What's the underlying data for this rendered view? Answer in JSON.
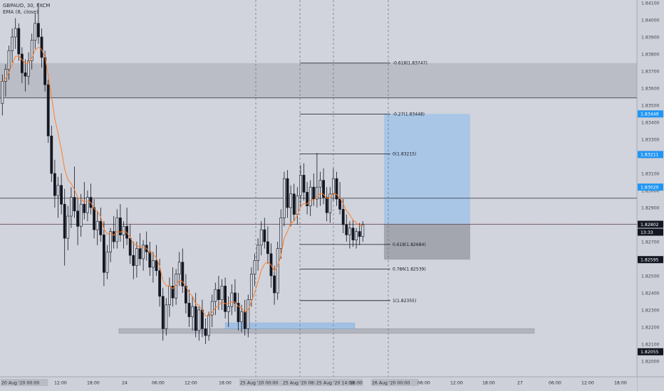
{
  "window": {
    "symbol_line": "GBPAUD, 30, FXCM",
    "indicator_line": "EMA (8, close)"
  },
  "colors": {
    "background": "#d1d4dc",
    "axis_background": "#ced1d9",
    "candle": "#131722",
    "ema": "#ff7f2a",
    "zone_fill": "#b2b5be",
    "target_fill": "#a9c6e6",
    "stop_fill": "#9b9ea6",
    "label_blue": "#2196f3",
    "label_dark": "#131722"
  },
  "chart_data": {
    "type": "candlestick",
    "symbol": "GBPAUD",
    "timeframe": "30",
    "source": "FXCM",
    "ylim": [
      1.82,
      1.841
    ],
    "y_ticks": [
      "1.84100",
      "1.84000",
      "1.83900",
      "1.83800",
      "1.83700",
      "1.83600",
      "1.83500",
      "1.83400",
      "1.83300",
      "1.83200",
      "1.83100",
      "1.83000",
      "1.82900",
      "1.82800",
      "1.82700",
      "1.82600",
      "1.82500",
      "1.82400",
      "1.82300",
      "1.82200",
      "1.82100",
      "1.82000"
    ],
    "x_ticks": [
      "20 Aug '20  00:00",
      "12:00",
      "18:00",
      "24",
      "06:00",
      "12:00",
      "18:00",
      "25 Aug '20  00:00",
      "25 Aug '20  08:00",
      "25 Aug '20  14:00",
      "18:00",
      "26 Aug '20  00:00",
      "06:00",
      "12:00",
      "18:00",
      "27",
      "06:00",
      "12:00",
      "18:00"
    ],
    "price_labels": [
      {
        "value": "1.83449",
        "price": 1.83449,
        "style": "blue"
      },
      {
        "value": "1.83211",
        "price": 1.83211,
        "style": "blue"
      },
      {
        "value": "1.83020",
        "price": 1.8302,
        "style": "blue"
      },
      {
        "value": "1.82802",
        "price": 1.82802,
        "style": "dark"
      },
      {
        "value": "13:33",
        "price": 1.82756,
        "style": "dark"
      },
      {
        "value": "1.82595",
        "price": 1.82595,
        "style": "dark"
      },
      {
        "value": "1.82055",
        "price": 1.82055,
        "style": "dark"
      }
    ],
    "fib_levels": [
      {
        "label": "-0.618(1.83747)",
        "price": 1.83747
      },
      {
        "label": "-0.27(1.83448)",
        "price": 1.83448
      },
      {
        "label": "0(1.83215)",
        "price": 1.83215
      },
      {
        "label": "0.618(1.82684)",
        "price": 1.82684
      },
      {
        "label": "0.786(1.82539)",
        "price": 1.82539
      },
      {
        "label": "1(1.82355)",
        "price": 1.82355
      }
    ],
    "horizontal_lines": [
      1.83543,
      1.82955,
      1.82802
    ],
    "zones": [
      {
        "name": "resistance-zone",
        "from": 1.83543,
        "to": 1.83747
      },
      {
        "name": "support-zone",
        "from": 1.82163,
        "to": 1.8219
      },
      {
        "name": "demand-zone",
        "from": 1.8219,
        "to": 1.82225
      }
    ],
    "position": {
      "entry": 1.82802,
      "target": 1.83449,
      "stop": 1.82595
    },
    "ohlc": [
      [
        1.8351,
        1.8368,
        1.8344,
        1.8364
      ],
      [
        1.8364,
        1.8374,
        1.8355,
        1.8371
      ],
      [
        1.8371,
        1.8385,
        1.8365,
        1.8382
      ],
      [
        1.8382,
        1.8395,
        1.8375,
        1.839
      ],
      [
        1.839,
        1.8401,
        1.8383,
        1.8395
      ],
      [
        1.8395,
        1.8398,
        1.8376,
        1.838
      ],
      [
        1.838,
        1.8384,
        1.8363,
        1.8369
      ],
      [
        1.8369,
        1.8377,
        1.8358,
        1.8367
      ],
      [
        1.8367,
        1.8381,
        1.8362,
        1.8376
      ],
      [
        1.8376,
        1.8392,
        1.8371,
        1.8388
      ],
      [
        1.8388,
        1.8404,
        1.8383,
        1.8398
      ],
      [
        1.8398,
        1.841,
        1.8386,
        1.839
      ],
      [
        1.839,
        1.8395,
        1.8372,
        1.8378
      ],
      [
        1.8378,
        1.8382,
        1.8358,
        1.8362
      ],
      [
        1.8362,
        1.8365,
        1.8328,
        1.8332
      ],
      [
        1.8332,
        1.8338,
        1.8305,
        1.831
      ],
      [
        1.831,
        1.8318,
        1.829,
        1.8297
      ],
      [
        1.8297,
        1.8308,
        1.8284,
        1.8303
      ],
      [
        1.8303,
        1.831,
        1.8286,
        1.8292
      ],
      [
        1.8292,
        1.8301,
        1.8256,
        1.8272
      ],
      [
        1.8272,
        1.8291,
        1.8265,
        1.8285
      ],
      [
        1.8285,
        1.8302,
        1.8278,
        1.8296
      ],
      [
        1.8296,
        1.8314,
        1.8284,
        1.8288
      ],
      [
        1.8288,
        1.8296,
        1.8268,
        1.8279
      ],
      [
        1.8279,
        1.8298,
        1.8273,
        1.8292
      ],
      [
        1.8292,
        1.8305,
        1.8283,
        1.8287
      ],
      [
        1.8287,
        1.83,
        1.8282,
        1.8296
      ],
      [
        1.8296,
        1.8304,
        1.8286,
        1.829
      ],
      [
        1.829,
        1.8295,
        1.8272,
        1.8277
      ],
      [
        1.8277,
        1.8288,
        1.8268,
        1.8282
      ],
      [
        1.8282,
        1.829,
        1.827,
        1.8274
      ],
      [
        1.8274,
        1.8282,
        1.8244,
        1.8252
      ],
      [
        1.8252,
        1.8268,
        1.8248,
        1.8264
      ],
      [
        1.8264,
        1.8278,
        1.8258,
        1.8276
      ],
      [
        1.8276,
        1.8285,
        1.8266,
        1.827
      ],
      [
        1.827,
        1.8289,
        1.8266,
        1.8284
      ],
      [
        1.8284,
        1.8292,
        1.827,
        1.8274
      ],
      [
        1.8274,
        1.8282,
        1.8266,
        1.8279
      ],
      [
        1.8279,
        1.829,
        1.8268,
        1.8272
      ],
      [
        1.8272,
        1.828,
        1.8257,
        1.8262
      ],
      [
        1.8262,
        1.827,
        1.8248,
        1.8256
      ],
      [
        1.8256,
        1.827,
        1.8249,
        1.8266
      ],
      [
        1.8266,
        1.8275,
        1.8256,
        1.826
      ],
      [
        1.826,
        1.8271,
        1.8253,
        1.8268
      ],
      [
        1.8268,
        1.8276,
        1.8259,
        1.8264
      ],
      [
        1.8264,
        1.827,
        1.825,
        1.8255
      ],
      [
        1.8255,
        1.8264,
        1.8246,
        1.8259
      ],
      [
        1.8259,
        1.8268,
        1.825,
        1.8253
      ],
      [
        1.8253,
        1.826,
        1.8232,
        1.8238
      ],
      [
        1.8238,
        1.8243,
        1.8212,
        1.8219
      ],
      [
        1.8219,
        1.8237,
        1.8215,
        1.8233
      ],
      [
        1.8233,
        1.8249,
        1.8226,
        1.8244
      ],
      [
        1.8244,
        1.8255,
        1.8232,
        1.8237
      ],
      [
        1.8237,
        1.8254,
        1.8233,
        1.8251
      ],
      [
        1.8251,
        1.8264,
        1.8244,
        1.8258
      ],
      [
        1.8258,
        1.8266,
        1.824,
        1.8244
      ],
      [
        1.8244,
        1.8251,
        1.8228,
        1.8234
      ],
      [
        1.8234,
        1.8242,
        1.822,
        1.8226
      ],
      [
        1.8226,
        1.8238,
        1.8218,
        1.8232
      ],
      [
        1.8232,
        1.824,
        1.8214,
        1.8218
      ],
      [
        1.8218,
        1.8232,
        1.8212,
        1.823
      ],
      [
        1.823,
        1.8236,
        1.8214,
        1.8219
      ],
      [
        1.8219,
        1.8225,
        1.821,
        1.8215
      ],
      [
        1.8215,
        1.8229,
        1.8212,
        1.8227
      ],
      [
        1.8227,
        1.8239,
        1.822,
        1.8235
      ],
      [
        1.8235,
        1.8246,
        1.8227,
        1.8242
      ],
      [
        1.8242,
        1.825,
        1.823,
        1.8236
      ],
      [
        1.8236,
        1.8248,
        1.823,
        1.8244
      ],
      [
        1.8244,
        1.8249,
        1.8225,
        1.8229
      ],
      [
        1.8229,
        1.8238,
        1.822,
        1.8232
      ],
      [
        1.8232,
        1.8245,
        1.8227,
        1.824
      ],
      [
        1.824,
        1.8248,
        1.8229,
        1.8234
      ],
      [
        1.8234,
        1.824,
        1.8218,
        1.8223
      ],
      [
        1.8223,
        1.8233,
        1.8217,
        1.8229
      ],
      [
        1.8229,
        1.8236,
        1.8215,
        1.8219
      ],
      [
        1.8219,
        1.8239,
        1.8214,
        1.8236
      ],
      [
        1.8236,
        1.8255,
        1.8232,
        1.8251
      ],
      [
        1.8251,
        1.8263,
        1.8244,
        1.8259
      ],
      [
        1.8259,
        1.8272,
        1.8253,
        1.8268
      ],
      [
        1.8268,
        1.8282,
        1.8262,
        1.8277
      ],
      [
        1.8277,
        1.8284,
        1.8266,
        1.827
      ],
      [
        1.827,
        1.8279,
        1.8257,
        1.8263
      ],
      [
        1.8263,
        1.8269,
        1.8243,
        1.825
      ],
      [
        1.825,
        1.8256,
        1.8233,
        1.824
      ],
      [
        1.824,
        1.827,
        1.8236,
        1.8266
      ],
      [
        1.8266,
        1.8289,
        1.826,
        1.8284
      ],
      [
        1.8284,
        1.8311,
        1.8279,
        1.8307
      ],
      [
        1.8307,
        1.8312,
        1.8284,
        1.829
      ],
      [
        1.829,
        1.8303,
        1.8279,
        1.8298
      ],
      [
        1.8298,
        1.8304,
        1.8282,
        1.8286
      ],
      [
        1.8286,
        1.8302,
        1.828,
        1.8297
      ],
      [
        1.8297,
        1.8315,
        1.829,
        1.8309
      ],
      [
        1.8309,
        1.8316,
        1.8294,
        1.8299
      ],
      [
        1.8299,
        1.8305,
        1.8286,
        1.8291
      ],
      [
        1.8291,
        1.8306,
        1.8285,
        1.8302
      ],
      [
        1.8302,
        1.831,
        1.8291,
        1.8295
      ],
      [
        1.8295,
        1.8322,
        1.829,
        1.8302
      ],
      [
        1.8302,
        1.8311,
        1.8291,
        1.8306
      ],
      [
        1.8306,
        1.8313,
        1.8292,
        1.8296
      ],
      [
        1.8296,
        1.8302,
        1.8282,
        1.8287
      ],
      [
        1.8287,
        1.8302,
        1.8281,
        1.8298
      ],
      [
        1.8298,
        1.8313,
        1.8294,
        1.8307
      ],
      [
        1.8307,
        1.8311,
        1.8291,
        1.8295
      ],
      [
        1.8295,
        1.8305,
        1.8286,
        1.8289
      ],
      [
        1.8289,
        1.8295,
        1.8275,
        1.828
      ],
      [
        1.828,
        1.8286,
        1.827,
        1.8274
      ],
      [
        1.8274,
        1.8282,
        1.8266,
        1.8278
      ],
      [
        1.8278,
        1.8283,
        1.8267,
        1.8271
      ],
      [
        1.8271,
        1.8278,
        1.8266,
        1.8276
      ],
      [
        1.8276,
        1.8281,
        1.8268,
        1.8273
      ],
      [
        1.8273,
        1.8282,
        1.827,
        1.828
      ]
    ],
    "ema_period": 8
  }
}
